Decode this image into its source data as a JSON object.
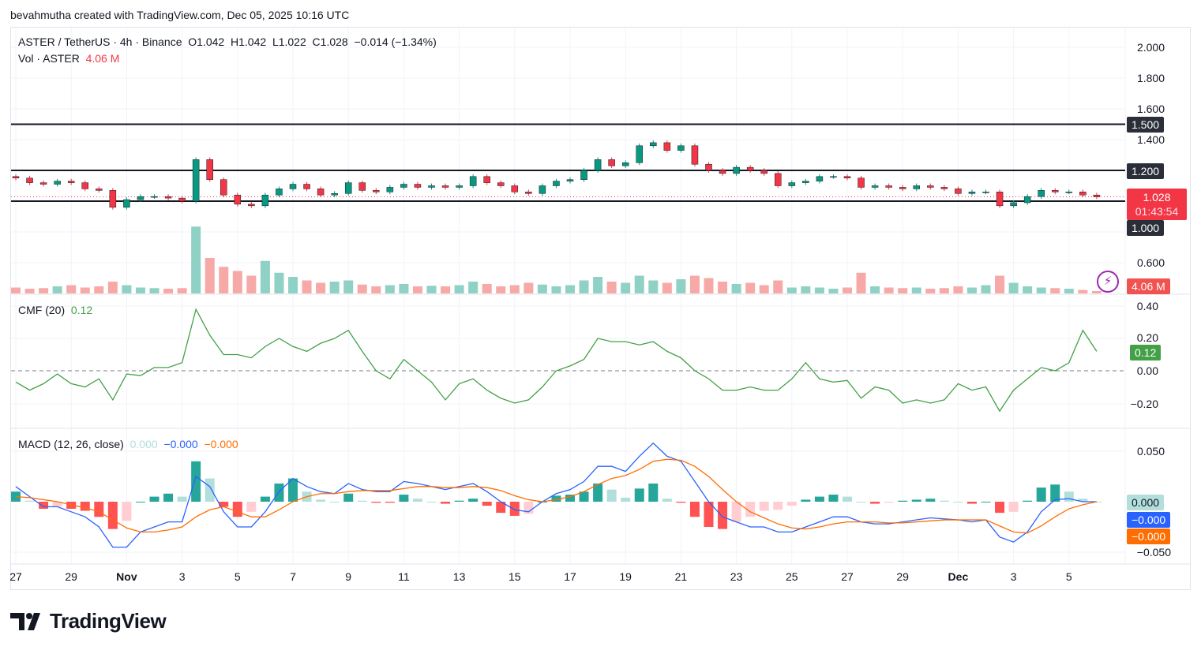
{
  "credit": "bevahmutha created with TradingView.com, Dec 05, 2025 10:16 UTC",
  "header": {
    "symbol": "ASTER / TetherUS · 4h · Binance",
    "open": "O1.042",
    "high": "H1.042",
    "low": "L1.022",
    "close": "C1.028",
    "change": "−0.014 (−1.34%)",
    "vol_label": "Vol · ASTER",
    "vol_value": "4.06 M"
  },
  "cmf": {
    "label": "CMF (20)",
    "value": "0.12",
    "ticks": [
      "0.40",
      "0.20",
      "0.00",
      "−0.20"
    ],
    "tag": "0.12"
  },
  "macd_legend": {
    "label": "MACD (12, 26, close)",
    "hist": "0.000",
    "macd": "−0.000",
    "signal": "−0.000",
    "ticks": [
      "0.050",
      "−0.050"
    ],
    "tag_zero": "0.000",
    "tag_macd": "−0.000",
    "tag_signal": "−0.000"
  },
  "price_axis": {
    "ticks": [
      "2.000",
      "1.800",
      "1.600",
      "1.400",
      "0.600"
    ],
    "levels": [
      "1.500",
      "1.200",
      "1.000"
    ],
    "last_price": "1.028",
    "countdown": "01:43:54",
    "vol_tag": "4.06 M"
  },
  "time_axis": [
    "27",
    "29",
    "Nov",
    "3",
    "5",
    "7",
    "9",
    "11",
    "13",
    "15",
    "17",
    "19",
    "21",
    "23",
    "25",
    "27",
    "29",
    "Dec",
    "3",
    "5"
  ],
  "logo": "TradingView",
  "colors": {
    "up": "#089981",
    "down": "#f23645",
    "cmf": "#43a047",
    "macd": "#2962ff",
    "signal": "#ff6d00",
    "level": "#131722"
  },
  "chart_data": {
    "type": "candlestick",
    "interval": "4h",
    "sampling_note_free": true,
    "x_start": "Oct 27",
    "x_end": "Dec 5",
    "horizontal_levels": [
      1.5,
      1.2,
      1.0
    ],
    "ylim": [
      0.55,
      2.05
    ],
    "first_open": 1.16,
    "close": [
      1.15,
      1.12,
      1.11,
      1.13,
      1.12,
      1.08,
      1.07,
      0.96,
      1.01,
      1.03,
      1.03,
      1.02,
      1.0,
      1.27,
      1.14,
      1.04,
      0.98,
      0.97,
      1.04,
      1.08,
      1.11,
      1.08,
      1.04,
      1.05,
      1.12,
      1.07,
      1.06,
      1.09,
      1.11,
      1.09,
      1.1,
      1.09,
      1.1,
      1.16,
      1.12,
      1.1,
      1.06,
      1.05,
      1.1,
      1.13,
      1.14,
      1.2,
      1.27,
      1.23,
      1.25,
      1.36,
      1.38,
      1.33,
      1.36,
      1.24,
      1.2,
      1.18,
      1.22,
      1.2,
      1.18,
      1.1,
      1.12,
      1.13,
      1.16,
      1.16,
      1.15,
      1.09,
      1.1,
      1.09,
      1.08,
      1.1,
      1.09,
      1.08,
      1.05,
      1.06,
      1.06,
      0.97,
      0.99,
      1.03,
      1.07,
      1.06,
      1.06,
      1.04,
      1.028
    ],
    "volume_m": [
      10,
      8,
      9,
      12,
      14,
      10,
      12,
      20,
      14,
      10,
      9,
      8,
      9,
      113,
      60,
      45,
      38,
      30,
      55,
      35,
      28,
      22,
      18,
      20,
      22,
      15,
      12,
      14,
      16,
      12,
      13,
      12,
      14,
      20,
      16,
      12,
      14,
      18,
      15,
      12,
      14,
      22,
      28,
      20,
      18,
      30,
      22,
      18,
      24,
      30,
      26,
      20,
      16,
      18,
      14,
      22,
      10,
      12,
      10,
      8,
      10,
      35,
      12,
      10,
      9,
      10,
      8,
      9,
      12,
      10,
      14,
      30,
      18,
      12,
      10,
      9,
      8,
      6,
      4.06
    ],
    "cmf": {
      "ylim": [
        -0.3,
        0.42
      ],
      "values": [
        -0.07,
        -0.12,
        -0.08,
        -0.02,
        -0.08,
        -0.1,
        -0.05,
        -0.18,
        -0.02,
        -0.03,
        0.02,
        0.02,
        0.05,
        0.38,
        0.22,
        0.1,
        0.1,
        0.08,
        0.15,
        0.2,
        0.15,
        0.12,
        0.17,
        0.2,
        0.25,
        0.12,
        0.0,
        -0.05,
        0.07,
        0.0,
        -0.07,
        -0.18,
        -0.08,
        -0.05,
        -0.12,
        -0.17,
        -0.2,
        -0.18,
        -0.1,
        0.0,
        0.03,
        0.07,
        0.2,
        0.18,
        0.18,
        0.16,
        0.18,
        0.12,
        0.08,
        0.0,
        -0.05,
        -0.12,
        -0.12,
        -0.1,
        -0.12,
        -0.12,
        -0.05,
        0.05,
        -0.05,
        -0.07,
        -0.06,
        -0.17,
        -0.1,
        -0.12,
        -0.2,
        -0.18,
        -0.2,
        -0.18,
        -0.08,
        -0.12,
        -0.1,
        -0.25,
        -0.12,
        -0.05,
        0.02,
        0.0,
        0.05,
        0.25,
        0.12
      ]
    },
    "macd": {
      "ylim": [
        -0.06,
        0.06
      ],
      "macd": [
        0.015,
        0.005,
        -0.005,
        -0.005,
        -0.01,
        -0.015,
        -0.025,
        -0.045,
        -0.045,
        -0.03,
        -0.025,
        -0.02,
        -0.02,
        0.025,
        0.015,
        -0.01,
        -0.025,
        -0.025,
        -0.01,
        0.01,
        0.023,
        0.015,
        0.01,
        0.008,
        0.018,
        0.012,
        0.01,
        0.01,
        0.02,
        0.018,
        0.015,
        0.012,
        0.015,
        0.018,
        0.01,
        0.0,
        -0.008,
        -0.01,
        0.0,
        0.008,
        0.012,
        0.02,
        0.035,
        0.035,
        0.03,
        0.045,
        0.058,
        0.045,
        0.04,
        0.02,
        0.0,
        -0.015,
        -0.02,
        -0.025,
        -0.025,
        -0.03,
        -0.03,
        -0.025,
        -0.02,
        -0.015,
        -0.015,
        -0.02,
        -0.022,
        -0.022,
        -0.02,
        -0.018,
        -0.016,
        -0.017,
        -0.018,
        -0.02,
        -0.018,
        -0.035,
        -0.04,
        -0.03,
        -0.01,
        0.002,
        0.003,
        0.0,
        0.0
      ],
      "signal": [
        0.005,
        0.004,
        0.002,
        0.0,
        -0.003,
        -0.006,
        -0.01,
        -0.018,
        -0.026,
        -0.03,
        -0.03,
        -0.028,
        -0.025,
        -0.015,
        -0.008,
        -0.005,
        -0.01,
        -0.015,
        -0.015,
        -0.008,
        0.0,
        0.005,
        0.008,
        0.008,
        0.01,
        0.011,
        0.011,
        0.011,
        0.013,
        0.015,
        0.015,
        0.014,
        0.014,
        0.015,
        0.014,
        0.011,
        0.006,
        0.002,
        0.0,
        0.002,
        0.005,
        0.01,
        0.017,
        0.023,
        0.026,
        0.032,
        0.04,
        0.042,
        0.041,
        0.035,
        0.025,
        0.012,
        0.0,
        -0.01,
        -0.016,
        -0.022,
        -0.026,
        -0.027,
        -0.025,
        -0.022,
        -0.02,
        -0.02,
        -0.02,
        -0.021,
        -0.021,
        -0.02,
        -0.019,
        -0.018,
        -0.018,
        -0.018,
        -0.018,
        -0.024,
        -0.03,
        -0.031,
        -0.024,
        -0.015,
        -0.007,
        -0.003,
        0.0
      ]
    }
  }
}
